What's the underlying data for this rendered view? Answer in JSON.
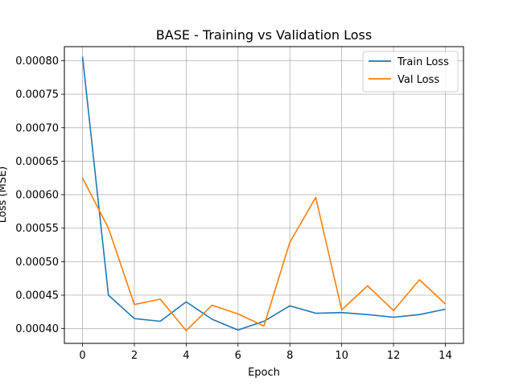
{
  "chart_data": {
    "type": "line",
    "title": "BASE - Training vs Validation Loss",
    "xlabel": "Epoch",
    "ylabel": "Loss (MSE)",
    "x": [
      0,
      1,
      2,
      3,
      4,
      5,
      6,
      7,
      8,
      9,
      10,
      11,
      12,
      13,
      14
    ],
    "xlim": [
      -0.7,
      14.7
    ],
    "ylim": [
      0.000378,
      0.000821
    ],
    "xticks": [
      0,
      2,
      4,
      6,
      8,
      10,
      12,
      14
    ],
    "yticks": [
      0.0004,
      0.00045,
      0.0005,
      0.00055,
      0.0006,
      0.00065,
      0.0007,
      0.00075,
      0.0008
    ],
    "ytick_labels": [
      "0.00040",
      "0.00045",
      "0.00050",
      "0.00055",
      "0.00060",
      "0.00065",
      "0.00070",
      "0.00075",
      "0.00080"
    ],
    "grid": true,
    "legend_position": "top-right",
    "series": [
      {
        "name": "Train Loss",
        "color": "#1f77b4",
        "values": [
          0.000806,
          0.00045,
          0.000415,
          0.000411,
          0.00044,
          0.000414,
          0.000398,
          0.000411,
          0.000434,
          0.000423,
          0.000424,
          0.000421,
          0.000417,
          0.000421,
          0.000429
        ]
      },
      {
        "name": "Val Loss",
        "color": "#ff7f0e",
        "values": [
          0.000625,
          0.00055,
          0.000436,
          0.000444,
          0.000397,
          0.000435,
          0.000422,
          0.000404,
          0.000529,
          0.000596,
          0.000428,
          0.000464,
          0.000427,
          0.000473,
          0.000437
        ]
      }
    ]
  }
}
